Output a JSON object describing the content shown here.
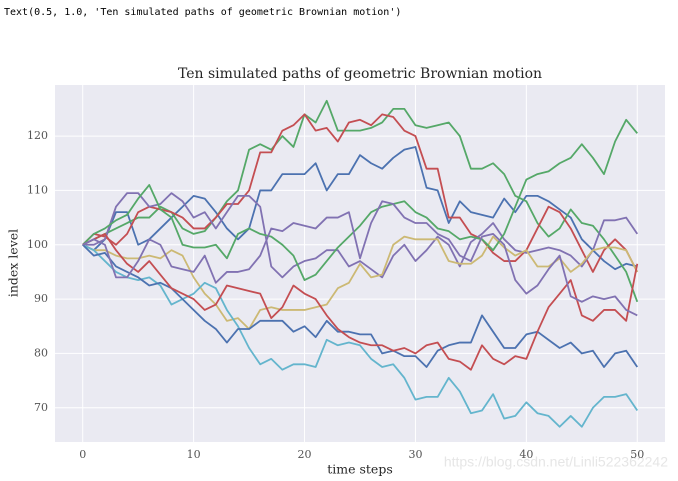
{
  "output": "Text(0.5, 1.0, 'Ten simulated paths of geometric Brownian motion')",
  "chart_data": {
    "type": "line",
    "title": "Ten simulated paths of geometric Brownian motion",
    "xlabel": "time steps",
    "ylabel": "index level",
    "watermark": "https://blog.csdn.net/Linli522362242",
    "grid": true,
    "x": [
      0,
      1,
      2,
      3,
      4,
      5,
      6,
      7,
      8,
      9,
      10,
      11,
      12,
      13,
      14,
      15,
      16,
      17,
      18,
      19,
      20,
      21,
      22,
      23,
      24,
      25,
      26,
      27,
      28,
      29,
      30,
      31,
      32,
      33,
      34,
      35,
      36,
      37,
      38,
      39,
      40,
      41,
      42,
      43,
      44,
      45,
      46,
      47,
      48,
      49,
      50
    ],
    "xlim": [
      -2.5,
      52.5
    ],
    "xticks": [
      0,
      10,
      20,
      30,
      40,
      50
    ],
    "ylim": [
      63.7,
      129.4
    ],
    "yticks": [
      70,
      80,
      90,
      100,
      110,
      120
    ],
    "series": [
      {
        "color": "#4C72B0",
        "values": [
          100,
          99,
          101,
          106,
          106,
          100,
          101,
          103,
          105,
          107,
          109,
          108.5,
          106,
          103,
          101,
          103,
          110,
          110,
          113,
          113,
          113,
          115,
          110,
          113,
          113,
          116.5,
          115,
          114,
          116,
          117.5,
          118,
          110.5,
          110,
          104,
          108,
          106,
          105.5,
          105,
          108.5,
          106,
          109,
          109,
          108,
          106.5,
          105,
          101,
          99,
          97,
          95.5,
          96.5,
          96
        ]
      },
      {
        "color": "#55A868",
        "values": [
          100,
          101,
          102,
          103,
          104,
          105,
          105,
          107,
          106,
          103,
          102,
          102.5,
          105,
          108,
          110,
          117.5,
          118.5,
          117.5,
          120,
          118,
          124,
          122.5,
          126.5,
          121,
          121,
          121,
          121.5,
          122.5,
          125,
          125,
          122,
          121.5,
          122,
          122.5,
          120,
          114,
          114,
          115,
          113,
          109,
          108,
          104,
          101.5,
          103,
          106.5,
          104,
          103.5,
          101,
          98,
          95,
          89.5
        ]
      },
      {
        "color": "#C44E52",
        "values": [
          100,
          102,
          101.5,
          100,
          102,
          106,
          107,
          106.5,
          106,
          105,
          103,
          103,
          105,
          107.5,
          107.5,
          110,
          117,
          117,
          121,
          122,
          124,
          121,
          121.5,
          119,
          122.5,
          123,
          122,
          124,
          123.5,
          121,
          120,
          114,
          114,
          105,
          105,
          102,
          101,
          98.5,
          97,
          97,
          99,
          103,
          107,
          106,
          103,
          99,
          95,
          99,
          101,
          99,
          95
        ]
      },
      {
        "color": "#8172B2",
        "values": [
          100,
          100,
          101,
          107,
          109.5,
          109.5,
          107,
          107.5,
          109.5,
          108,
          105,
          106,
          103,
          106,
          109,
          109,
          107,
          96,
          94,
          96,
          97,
          97.5,
          99,
          99,
          96,
          97,
          95.5,
          94,
          98,
          100,
          97,
          99,
          101.5,
          100,
          96,
          100.5,
          102,
          104,
          101,
          99,
          98.5,
          99,
          99.5,
          99,
          98,
          96,
          99,
          104.5,
          104.5,
          105,
          102
        ]
      },
      {
        "color": "#CCB974",
        "values": [
          100,
          99,
          99,
          98,
          97.5,
          97.5,
          98,
          97.5,
          99,
          98,
          94,
          91,
          89,
          86,
          86.5,
          84.5,
          88,
          88.5,
          88,
          88,
          88,
          88.5,
          89,
          92,
          93,
          96.5,
          94,
          94.5,
          100,
          101.5,
          101,
          101,
          101,
          97,
          96.5,
          96.5,
          98,
          101.5,
          99.5,
          98,
          99,
          96,
          96,
          97.5,
          95,
          96.5,
          99,
          99.5,
          99.5,
          99,
          95
        ]
      },
      {
        "color": "#64B5CD",
        "values": [
          100,
          99,
          97,
          95,
          94,
          93.5,
          94,
          92.5,
          89,
          90,
          91,
          93,
          92,
          88,
          85,
          81,
          78,
          79,
          77,
          78,
          78,
          77.5,
          82.5,
          81.5,
          82,
          81.5,
          79,
          77.5,
          78,
          75.5,
          71.5,
          72,
          72,
          75.5,
          73,
          69,
          69.5,
          72.5,
          68,
          68.5,
          71,
          69,
          68.5,
          66.5,
          68.5,
          66.5,
          70,
          72,
          72,
          72.5,
          69.5
        ]
      },
      {
        "color": "#4C72B0",
        "values": [
          100,
          98,
          98.5,
          96,
          95,
          94,
          92.5,
          93,
          92,
          90,
          88,
          86,
          84.5,
          82,
          84.5,
          84.5,
          86,
          86,
          86,
          84,
          85,
          83,
          86,
          84,
          84,
          83.5,
          83.5,
          80,
          80.5,
          79.5,
          79.5,
          77.5,
          80.5,
          81.5,
          82,
          82,
          87,
          84,
          81,
          81,
          83.5,
          84,
          82.5,
          81,
          82,
          80,
          80.5,
          77.5,
          80,
          80.5,
          77.5
        ]
      },
      {
        "color": "#55A868",
        "values": [
          100,
          102,
          103,
          104.5,
          105.5,
          108.5,
          111,
          106.5,
          105,
          100,
          99.5,
          99.5,
          100,
          97.5,
          102,
          103,
          102,
          101.5,
          100,
          98,
          93.5,
          94.5,
          97,
          99.5,
          101.5,
          103.5,
          106,
          107,
          107.5,
          108,
          106,
          105,
          103,
          102.5,
          101,
          101.5,
          101,
          99,
          102,
          107,
          112,
          113,
          113.5,
          115,
          116,
          118.5,
          116,
          113,
          119,
          123,
          120.5
        ]
      },
      {
        "color": "#C44E52",
        "values": [
          100,
          101,
          102,
          99,
          96.5,
          95,
          97,
          94.5,
          92,
          91,
          90,
          88,
          89,
          92.5,
          92,
          91.5,
          91,
          86.5,
          88.5,
          92.5,
          91,
          90,
          87,
          84.5,
          83,
          82,
          81.5,
          81.5,
          80.5,
          81,
          80,
          81.5,
          82,
          79,
          78.5,
          77,
          81.5,
          79,
          78,
          79.5,
          79,
          84,
          88.5,
          91,
          93.5,
          87,
          86,
          88,
          88,
          86,
          96.5
        ]
      },
      {
        "color": "#8172B2",
        "values": [
          100,
          101,
          100,
          94,
          94,
          97,
          101,
          100,
          96,
          95.5,
          95,
          98,
          93,
          95,
          95,
          95.5,
          98,
          103,
          102.5,
          104,
          103.5,
          103,
          105,
          105,
          106,
          97.5,
          104,
          108,
          107.5,
          105,
          104,
          104,
          102,
          101,
          98,
          97,
          101.5,
          102,
          100,
          93.5,
          91,
          92.5,
          95.5,
          98,
          90.5,
          89.5,
          90.5,
          90,
          90.5,
          88,
          87
        ]
      }
    ]
  }
}
